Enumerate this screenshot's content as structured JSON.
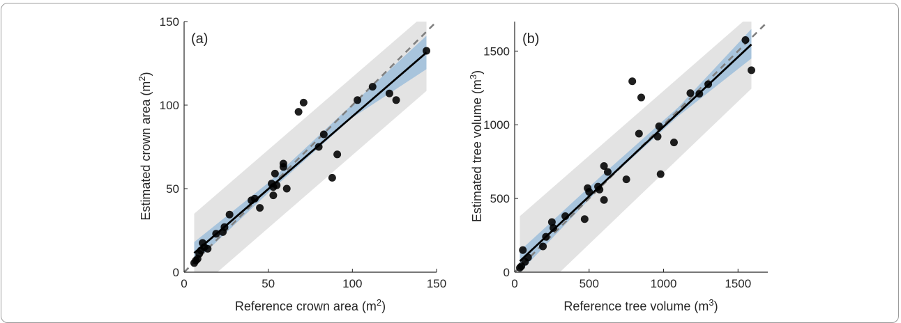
{
  "chart_data": [
    {
      "type": "scatter",
      "panel_label": "(a)",
      "xlabel": "Reference crown area (m",
      "xlabel_sup": "2",
      "xlabel_tail": ")",
      "ylabel": "Estimated crown area (m",
      "ylabel_sup": "2",
      "ylabel_tail": ")",
      "xlim": [
        0,
        150
      ],
      "ylim": [
        0,
        150
      ],
      "xticks": [
        0,
        50,
        100,
        150
      ],
      "yticks": [
        0,
        50,
        100,
        150
      ],
      "points": [
        [
          6,
          5.5
        ],
        [
          7,
          7
        ],
        [
          8,
          8
        ],
        [
          9,
          11
        ],
        [
          10,
          13
        ],
        [
          11,
          17.5
        ],
        [
          12,
          15
        ],
        [
          14,
          14
        ],
        [
          19,
          23
        ],
        [
          23,
          24
        ],
        [
          24,
          27
        ],
        [
          27,
          34.5
        ],
        [
          40,
          43
        ],
        [
          42,
          44
        ],
        [
          45,
          38.5
        ],
        [
          52,
          53
        ],
        [
          53,
          46
        ],
        [
          53,
          51
        ],
        [
          54,
          59
        ],
        [
          55,
          52
        ],
        [
          59,
          63
        ],
        [
          59,
          65
        ],
        [
          61,
          50
        ],
        [
          68,
          96
        ],
        [
          71,
          101.5
        ],
        [
          80,
          75
        ],
        [
          83,
          82.5
        ],
        [
          88,
          56.5
        ],
        [
          91,
          70.5
        ],
        [
          103,
          103
        ],
        [
          112,
          111
        ],
        [
          122,
          107
        ],
        [
          126,
          103
        ],
        [
          144,
          132.5
        ]
      ],
      "fit_line": {
        "x": [
          6,
          144
        ],
        "y": [
          11.5,
          131.5
        ]
      },
      "identity_line": true,
      "confidence_band": {
        "x": [
          6,
          50,
          100,
          144
        ],
        "lower": [
          5.5,
          47.5,
          92.5,
          121.5
        ],
        "upper": [
          18,
          53.5,
          100.5,
          141.5
        ]
      },
      "prediction_band": {
        "x": [
          6,
          144
        ],
        "lower": [
          -12,
          108.5
        ],
        "upper": [
          35,
          155
        ]
      },
      "colors": {
        "points": "#000000",
        "fit": "#000000",
        "identity": "#808080",
        "confidence": "#a8c4dc",
        "prediction": "#e3e3e3"
      }
    },
    {
      "type": "scatter",
      "panel_label": "(b)",
      "xlabel": "Reference tree volume (m",
      "xlabel_sup": "3",
      "xlabel_tail": ")",
      "ylabel": "Estimated tree volume (m",
      "ylabel_sup": "3",
      "ylabel_tail": ")",
      "xlim": [
        0,
        1700
      ],
      "ylim": [
        0,
        1700
      ],
      "xticks": [
        0,
        500,
        1000,
        1500
      ],
      "yticks": [
        0,
        500,
        1000,
        1500
      ],
      "points": [
        [
          35,
          30
        ],
        [
          45,
          40
        ],
        [
          55,
          150
        ],
        [
          70,
          70
        ],
        [
          90,
          100
        ],
        [
          190,
          175
        ],
        [
          210,
          240
        ],
        [
          250,
          340
        ],
        [
          260,
          300
        ],
        [
          340,
          380
        ],
        [
          470,
          360
        ],
        [
          490,
          570
        ],
        [
          500,
          545
        ],
        [
          560,
          580
        ],
        [
          570,
          560
        ],
        [
          600,
          720
        ],
        [
          600,
          490
        ],
        [
          625,
          680
        ],
        [
          750,
          630
        ],
        [
          790,
          1295
        ],
        [
          835,
          940
        ],
        [
          850,
          1185
        ],
        [
          960,
          920
        ],
        [
          970,
          990
        ],
        [
          980,
          665
        ],
        [
          1070,
          880
        ],
        [
          1180,
          1215
        ],
        [
          1240,
          1210
        ],
        [
          1300,
          1275
        ],
        [
          1550,
          1575
        ],
        [
          1590,
          1370
        ]
      ],
      "fit_line": {
        "x": [
          35,
          1590
        ],
        "y": [
          75,
          1545
        ]
      },
      "identity_line": true,
      "confidence_band": {
        "x": [
          35,
          600,
          1100,
          1590
        ],
        "lower": [
          0,
          600,
          1060,
          1450
        ],
        "upper": [
          145,
          670,
          1120,
          1650
        ]
      },
      "prediction_band": {
        "x": [
          35,
          1590
        ],
        "lower": [
          -260,
          1245
        ],
        "upper": [
          380,
          1750
        ]
      },
      "colors": {
        "points": "#000000",
        "fit": "#000000",
        "identity": "#808080",
        "confidence": "#a8c4dc",
        "prediction": "#e3e3e3"
      }
    }
  ]
}
